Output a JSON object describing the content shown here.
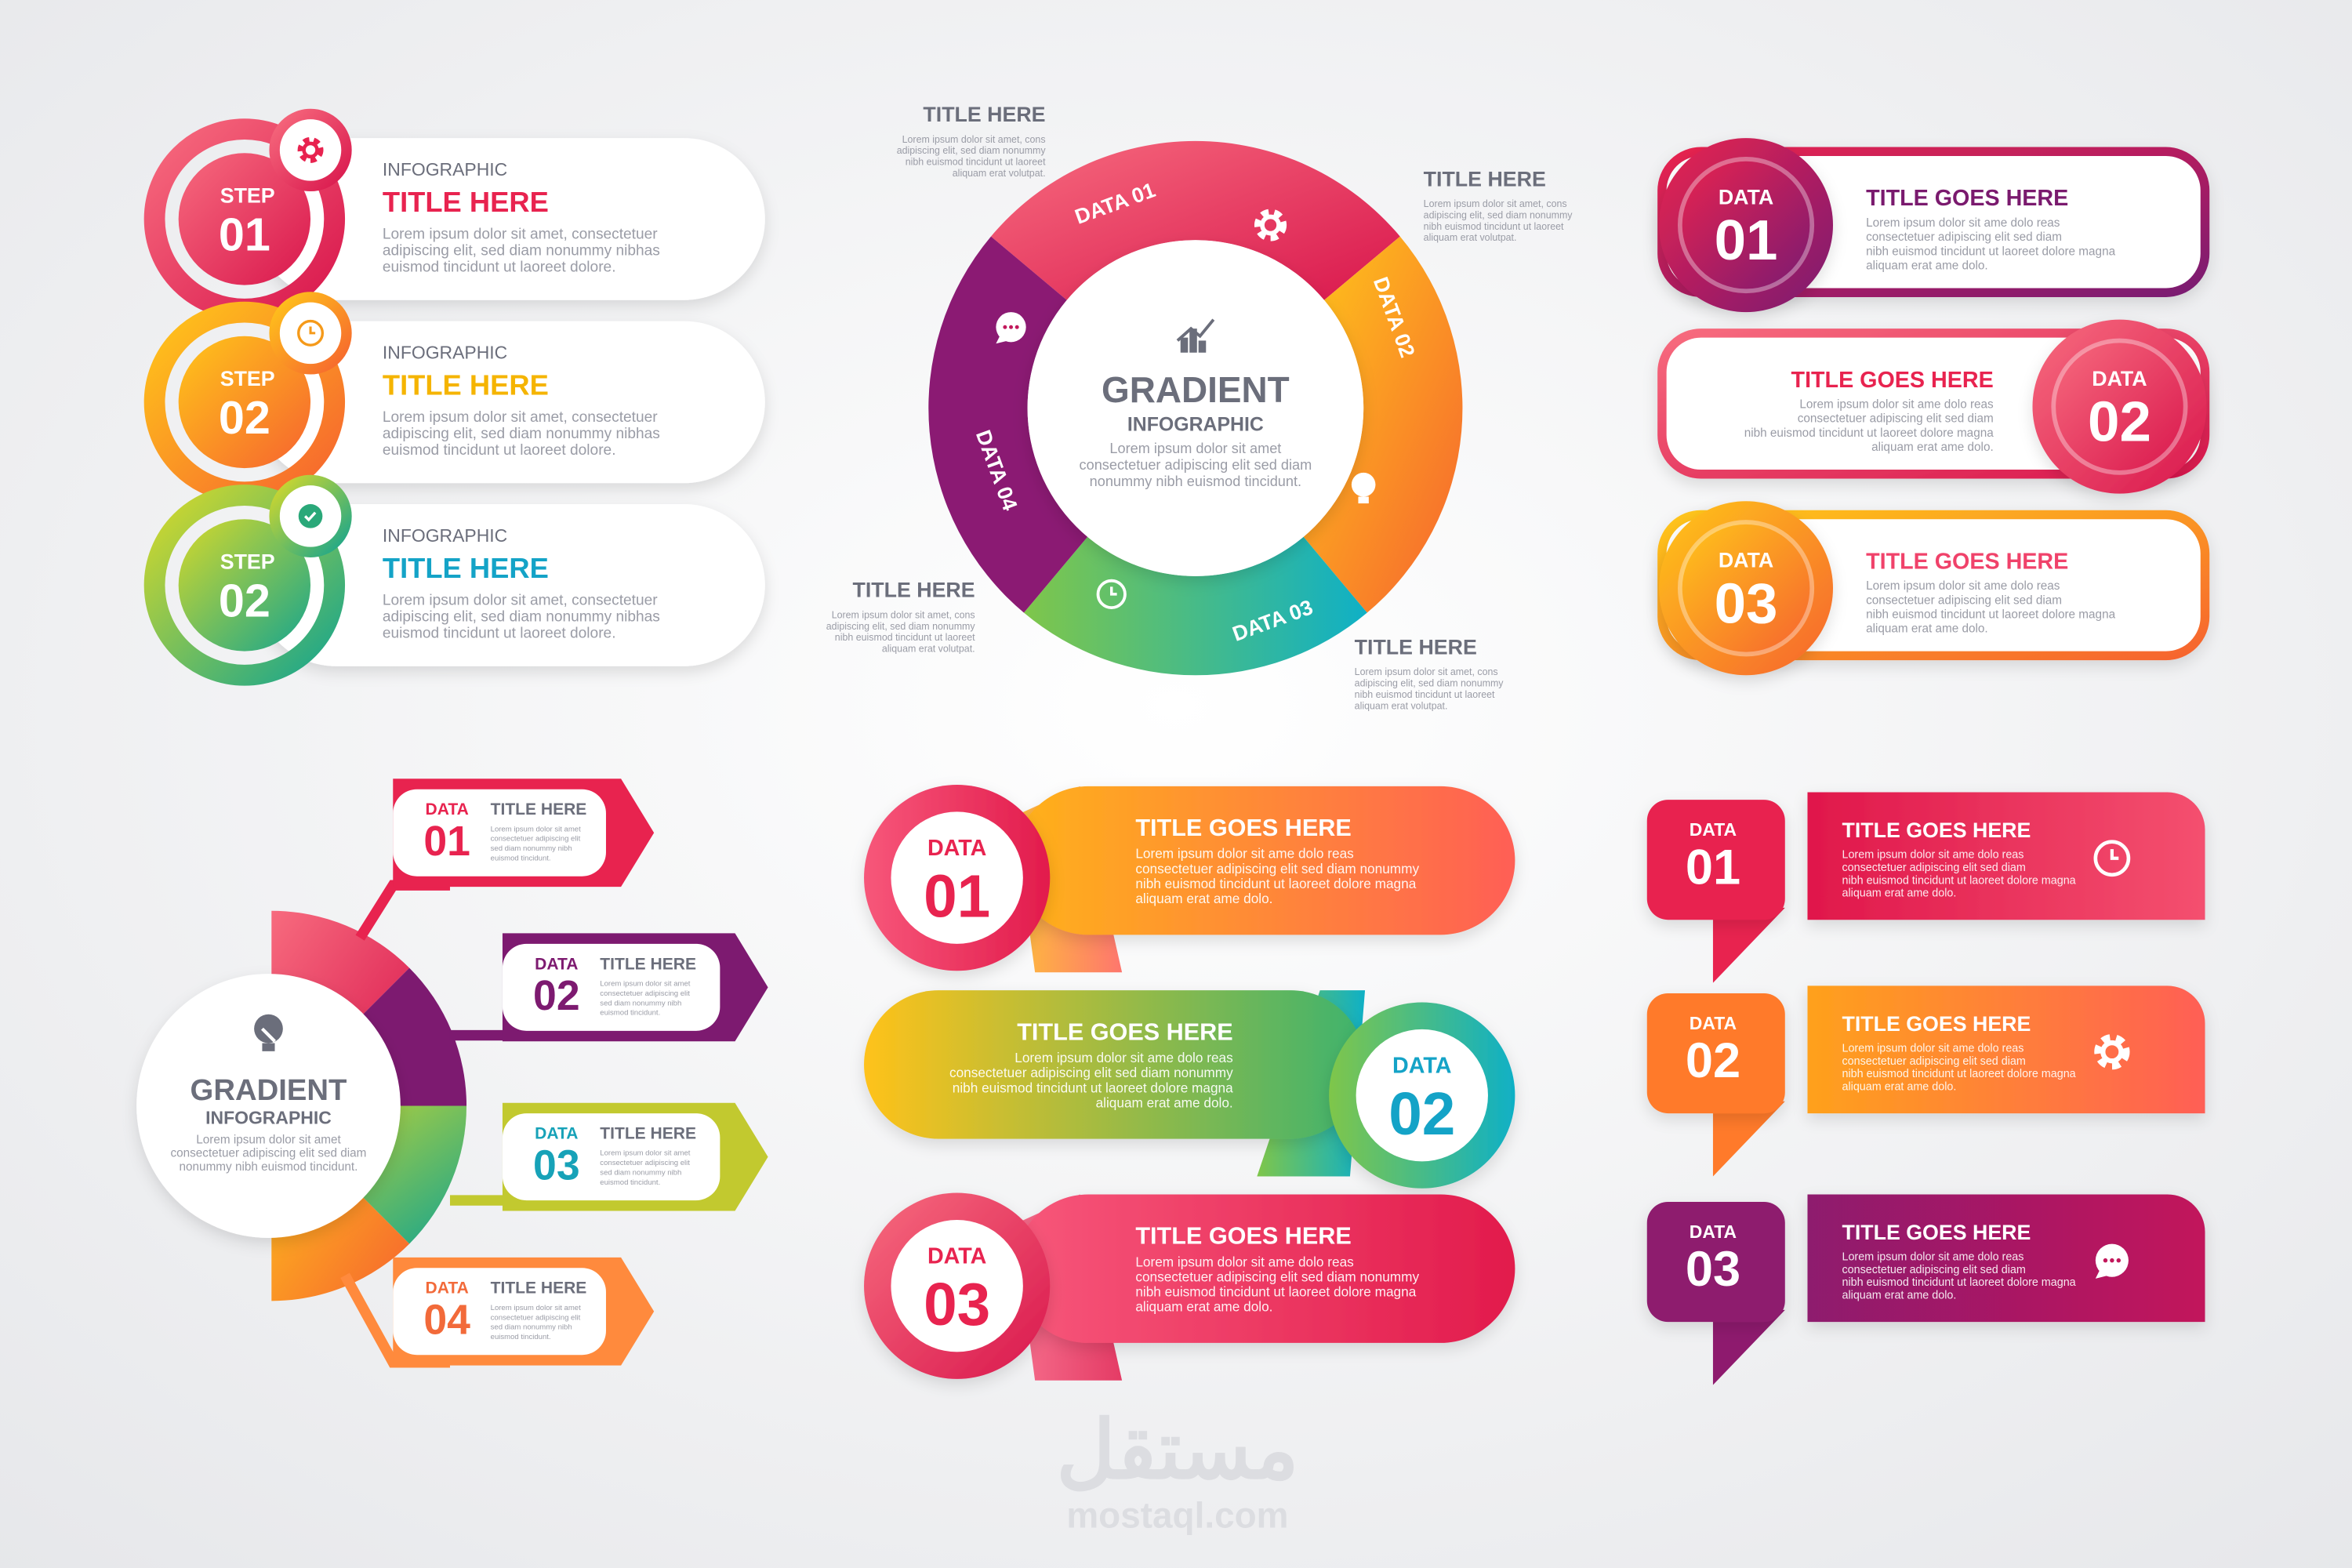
{
  "steps_panel": {
    "items": [
      {
        "step_label": "STEP",
        "number": "01",
        "kicker": "INFOGRAPHIC",
        "title": "TITLE HERE",
        "body": [
          "Lorem ipsum dolor sit amet, consectetuer",
          "adipiscing elit, sed diam nonummy nibhas",
          "euismod tincidunt ut laoreet dolore."
        ]
      },
      {
        "step_label": "STEP",
        "number": "02",
        "kicker": "INFOGRAPHIC",
        "title": "TITLE HERE",
        "body": [
          "Lorem ipsum dolor sit amet, consectetuer",
          "adipiscing elit, sed diam nonummy nibhas",
          "euismod tincidunt ut laoreet dolore."
        ]
      },
      {
        "step_label": "STEP",
        "number": "02",
        "kicker": "INFOGRAPHIC",
        "title": "TITLE HERE",
        "body": [
          "Lorem ipsum dolor sit amet, consectetuer",
          "adipiscing elit, sed diam nonummy nibhas",
          "euismod tincidunt ut laoreet dolore."
        ]
      }
    ]
  },
  "cycle": {
    "center_title": "GRADIENT",
    "center_subtitle": "INFOGRAPHIC",
    "center_body": [
      "Lorem ipsum dolor sit amet",
      "consectetuer adipiscing elit sed diam",
      "nonummy nibh euismod tincidunt."
    ],
    "segments": [
      "DATA 01",
      "DATA 02",
      "DATA 03",
      "DATA 04"
    ],
    "callouts": [
      {
        "title": "TITLE HERE",
        "body": [
          "Lorem ipsum dolor sit amet, cons",
          "adipiscing elit, sed diam nonummy",
          "nibh euismod tincidunt ut laoreet",
          "aliquam erat volutpat."
        ]
      },
      {
        "title": "TITLE HERE",
        "body": [
          "Lorem ipsum dolor sit amet, cons",
          "adipiscing elit, sed diam nonummy",
          "nibh euismod tincidunt ut laoreet",
          "aliquam erat volutpat."
        ]
      },
      {
        "title": "TITLE HERE",
        "body": [
          "Lorem ipsum dolor sit amet, cons",
          "adipiscing elit, sed diam nonummy",
          "nibh euismod tincidunt ut laoreet",
          "aliquam erat volutpat."
        ]
      },
      {
        "title": "TITLE HERE",
        "body": [
          "Lorem ipsum dolor sit amet, cons",
          "adipiscing elit, sed diam nonummy",
          "nibh euismod tincidunt ut laoreet",
          "aliquam erat volutpat."
        ]
      }
    ]
  },
  "data_cards": {
    "items": [
      {
        "label": "DATA",
        "number": "01",
        "title": "TITLE GOES HERE",
        "body": [
          "Lorem ipsum dolor sit ame dolo reas",
          "consectetuer adipiscing elit sed diam",
          "nibh euismod tincidunt ut laoreet dolore magna",
          "aliquam erat ame dolo."
        ]
      },
      {
        "label": "DATA",
        "number": "02",
        "title": "TITLE GOES HERE",
        "body": [
          "Lorem ipsum dolor sit ame dolo reas",
          "consectetuer adipiscing elit sed diam",
          "nibh euismod tincidunt ut laoreet dolore magna",
          "aliquam erat ame dolo."
        ]
      },
      {
        "label": "DATA",
        "number": "03",
        "title": "TITLE GOES HERE",
        "body": [
          "Lorem ipsum dolor sit ame dolo reas",
          "consectetuer adipiscing elit sed diam",
          "nibh euismod tincidunt ut laoreet dolore magna",
          "aliquam erat ame dolo."
        ]
      }
    ]
  },
  "branch": {
    "center_title": "GRADIENT",
    "center_subtitle": "INFOGRAPHIC",
    "center_body": [
      "Lorem ipsum dolor sit amet",
      "consectetuer adipiscing elit sed diam",
      "nonummy nibh euismod tincidunt."
    ],
    "items": [
      {
        "label": "DATA",
        "number": "01",
        "title": "TITLE HERE",
        "body": [
          "Lorem ipsum dolor sit amet",
          "consectetuer adipiscing elit",
          "sed diam nonummy nibh",
          "euismod tincidunt."
        ]
      },
      {
        "label": "DATA",
        "number": "02",
        "title": "TITLE HERE",
        "body": [
          "Lorem ipsum dolor sit amet",
          "consectetuer adipiscing elit",
          "sed diam nonummy nibh",
          "euismod tincidunt."
        ]
      },
      {
        "label": "DATA",
        "number": "03",
        "title": "TITLE HERE",
        "body": [
          "Lorem ipsum dolor sit amet",
          "consectetuer adipiscing elit",
          "sed diam nonummy nibh",
          "euismod tincidunt."
        ]
      },
      {
        "label": "DATA",
        "number": "04",
        "title": "TITLE HERE",
        "body": [
          "Lorem ipsum dolor sit amet",
          "consectetuer adipiscing elit",
          "sed diam nonummy nibh",
          "euismod tincidunt."
        ]
      }
    ]
  },
  "banners": {
    "items": [
      {
        "label": "DATA",
        "number": "01",
        "title": "TITLE GOES HERE",
        "body": [
          "Lorem ipsum dolor sit ame dolo reas",
          "consectetuer adipiscing elit sed diam nonummy",
          "nibh euismod tincidunt ut laoreet dolore magna",
          "aliquam erat ame dolo."
        ]
      },
      {
        "label": "DATA",
        "number": "02",
        "title": "TITLE GOES HERE",
        "body": [
          "Lorem ipsum dolor sit ame dolo reas",
          "consectetuer adipiscing elit sed diam nonummy",
          "nibh euismod tincidunt ut laoreet dolore magna",
          "aliquam erat ame dolo."
        ]
      },
      {
        "label": "DATA",
        "number": "03",
        "title": "TITLE GOES HERE",
        "body": [
          "Lorem ipsum dolor sit ame dolo reas",
          "consectetuer adipiscing elit sed diam nonummy",
          "nibh euismod tincidunt ut laoreet dolore magna",
          "aliquam erat ame dolo."
        ]
      }
    ]
  },
  "flags": {
    "items": [
      {
        "label": "DATA",
        "number": "01",
        "title": "TITLE GOES HERE",
        "body": [
          "Lorem ipsum dolor sit ame dolo reas",
          "consectetuer adipiscing elit sed diam",
          "nibh euismod tincidunt ut laoreet dolore magna",
          "aliquam erat ame dolo."
        ]
      },
      {
        "label": "DATA",
        "number": "02",
        "title": "TITLE GOES HERE",
        "body": [
          "Lorem ipsum dolor sit ame dolo reas",
          "consectetuer adipiscing elit sed diam",
          "nibh euismod tincidunt ut laoreet dolore magna",
          "aliquam erat ame dolo."
        ]
      },
      {
        "label": "DATA",
        "number": "03",
        "title": "TITLE GOES HERE",
        "body": [
          "Lorem ipsum dolor sit ame dolo reas",
          "consectetuer adipiscing elit sed diam",
          "nibh euismod tincidunt ut laoreet dolore magna",
          "aliquam erat ame dolo."
        ]
      }
    ]
  },
  "watermark": {
    "arabic": "مستقل",
    "site": "mostaql.com"
  }
}
